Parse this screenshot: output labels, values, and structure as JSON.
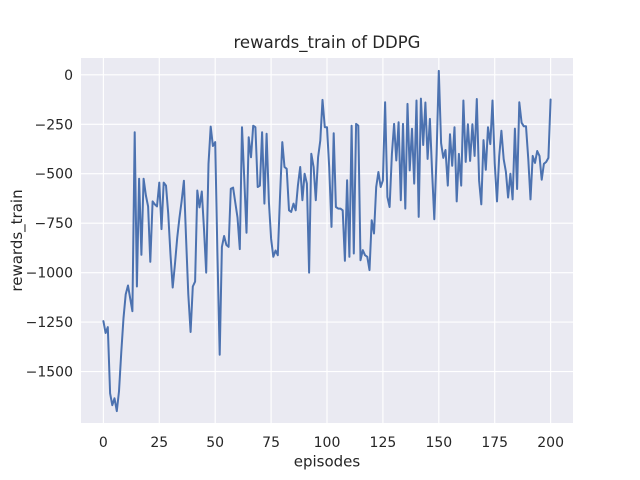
{
  "figure": {
    "title": "rewards_train of DDPG",
    "xlabel": "episodes",
    "ylabel": "rewards_train"
  },
  "chart_data": {
    "type": "line",
    "title": "rewards_train of DDPG",
    "xlabel": "episodes",
    "ylabel": "rewards_train",
    "x_start": 0,
    "x_step": 1,
    "x_ticks": [
      0,
      25,
      50,
      75,
      100,
      125,
      150,
      175,
      200
    ],
    "y_ticks": [
      0,
      -250,
      -500,
      -750,
      -1000,
      -1250,
      -1500
    ],
    "xlim": [
      -10,
      210
    ],
    "ylim": [
      -1760,
      85
    ],
    "grid": true,
    "legend": false,
    "line_color": "#4c72b0",
    "plot_bg": "#eaeaf2",
    "grid_color": "#ffffff",
    "text_color": "#262626",
    "series": [
      {
        "name": "rewards_train",
        "values": [
          -1245,
          -1305,
          -1275,
          -1610,
          -1670,
          -1635,
          -1700,
          -1600,
          -1400,
          -1230,
          -1110,
          -1065,
          -1130,
          -1195,
          -290,
          -1070,
          -525,
          -910,
          -525,
          -610,
          -665,
          -945,
          -640,
          -655,
          -665,
          -545,
          -780,
          -545,
          -560,
          -700,
          -910,
          -1075,
          -960,
          -825,
          -725,
          -640,
          -535,
          -830,
          -1110,
          -1300,
          -1070,
          -1045,
          -585,
          -670,
          -590,
          -780,
          -1000,
          -450,
          -262,
          -360,
          -340,
          -900,
          -1415,
          -870,
          -815,
          -860,
          -870,
          -576,
          -570,
          -646,
          -721,
          -881,
          -265,
          -529,
          -798,
          -316,
          -417,
          -257,
          -265,
          -567,
          -560,
          -290,
          -651,
          -298,
          -643,
          -828,
          -920,
          -888,
          -912,
          -617,
          -340,
          -466,
          -475,
          -685,
          -693,
          -651,
          -685,
          -560,
          -466,
          -634,
          -500,
          -550,
          -1000,
          -399,
          -466,
          -634,
          -416,
          -332,
          -127,
          -265,
          -265,
          -467,
          -769,
          -295,
          -668,
          -676,
          -676,
          -685,
          -940,
          -533,
          -920,
          -257,
          -903,
          -248,
          -257,
          -937,
          -886,
          -912,
          -920,
          -987,
          -735,
          -802,
          -567,
          -491,
          -567,
          -533,
          -139,
          -617,
          -668,
          -400,
          -248,
          -433,
          -240,
          -634,
          -248,
          -676,
          -147,
          -483,
          -273,
          -550,
          -130,
          -718,
          -120,
          -355,
          -140,
          -425,
          -223,
          -490,
          -730,
          -400,
          20,
          -345,
          -420,
          -380,
          -560,
          -300,
          -460,
          -265,
          -640,
          -400,
          -560,
          -130,
          -440,
          -250,
          -435,
          -250,
          -410,
          -122,
          -535,
          -655,
          -330,
          -480,
          -265,
          -350,
          -130,
          -445,
          -640,
          -412,
          -283,
          -427,
          -490,
          -620,
          -500,
          -630,
          -272,
          -577,
          -139,
          -242,
          -260,
          -260,
          -427,
          -630,
          -410,
          -445,
          -385,
          -410,
          -530,
          -450,
          -440,
          -420,
          -125
        ]
      }
    ]
  }
}
